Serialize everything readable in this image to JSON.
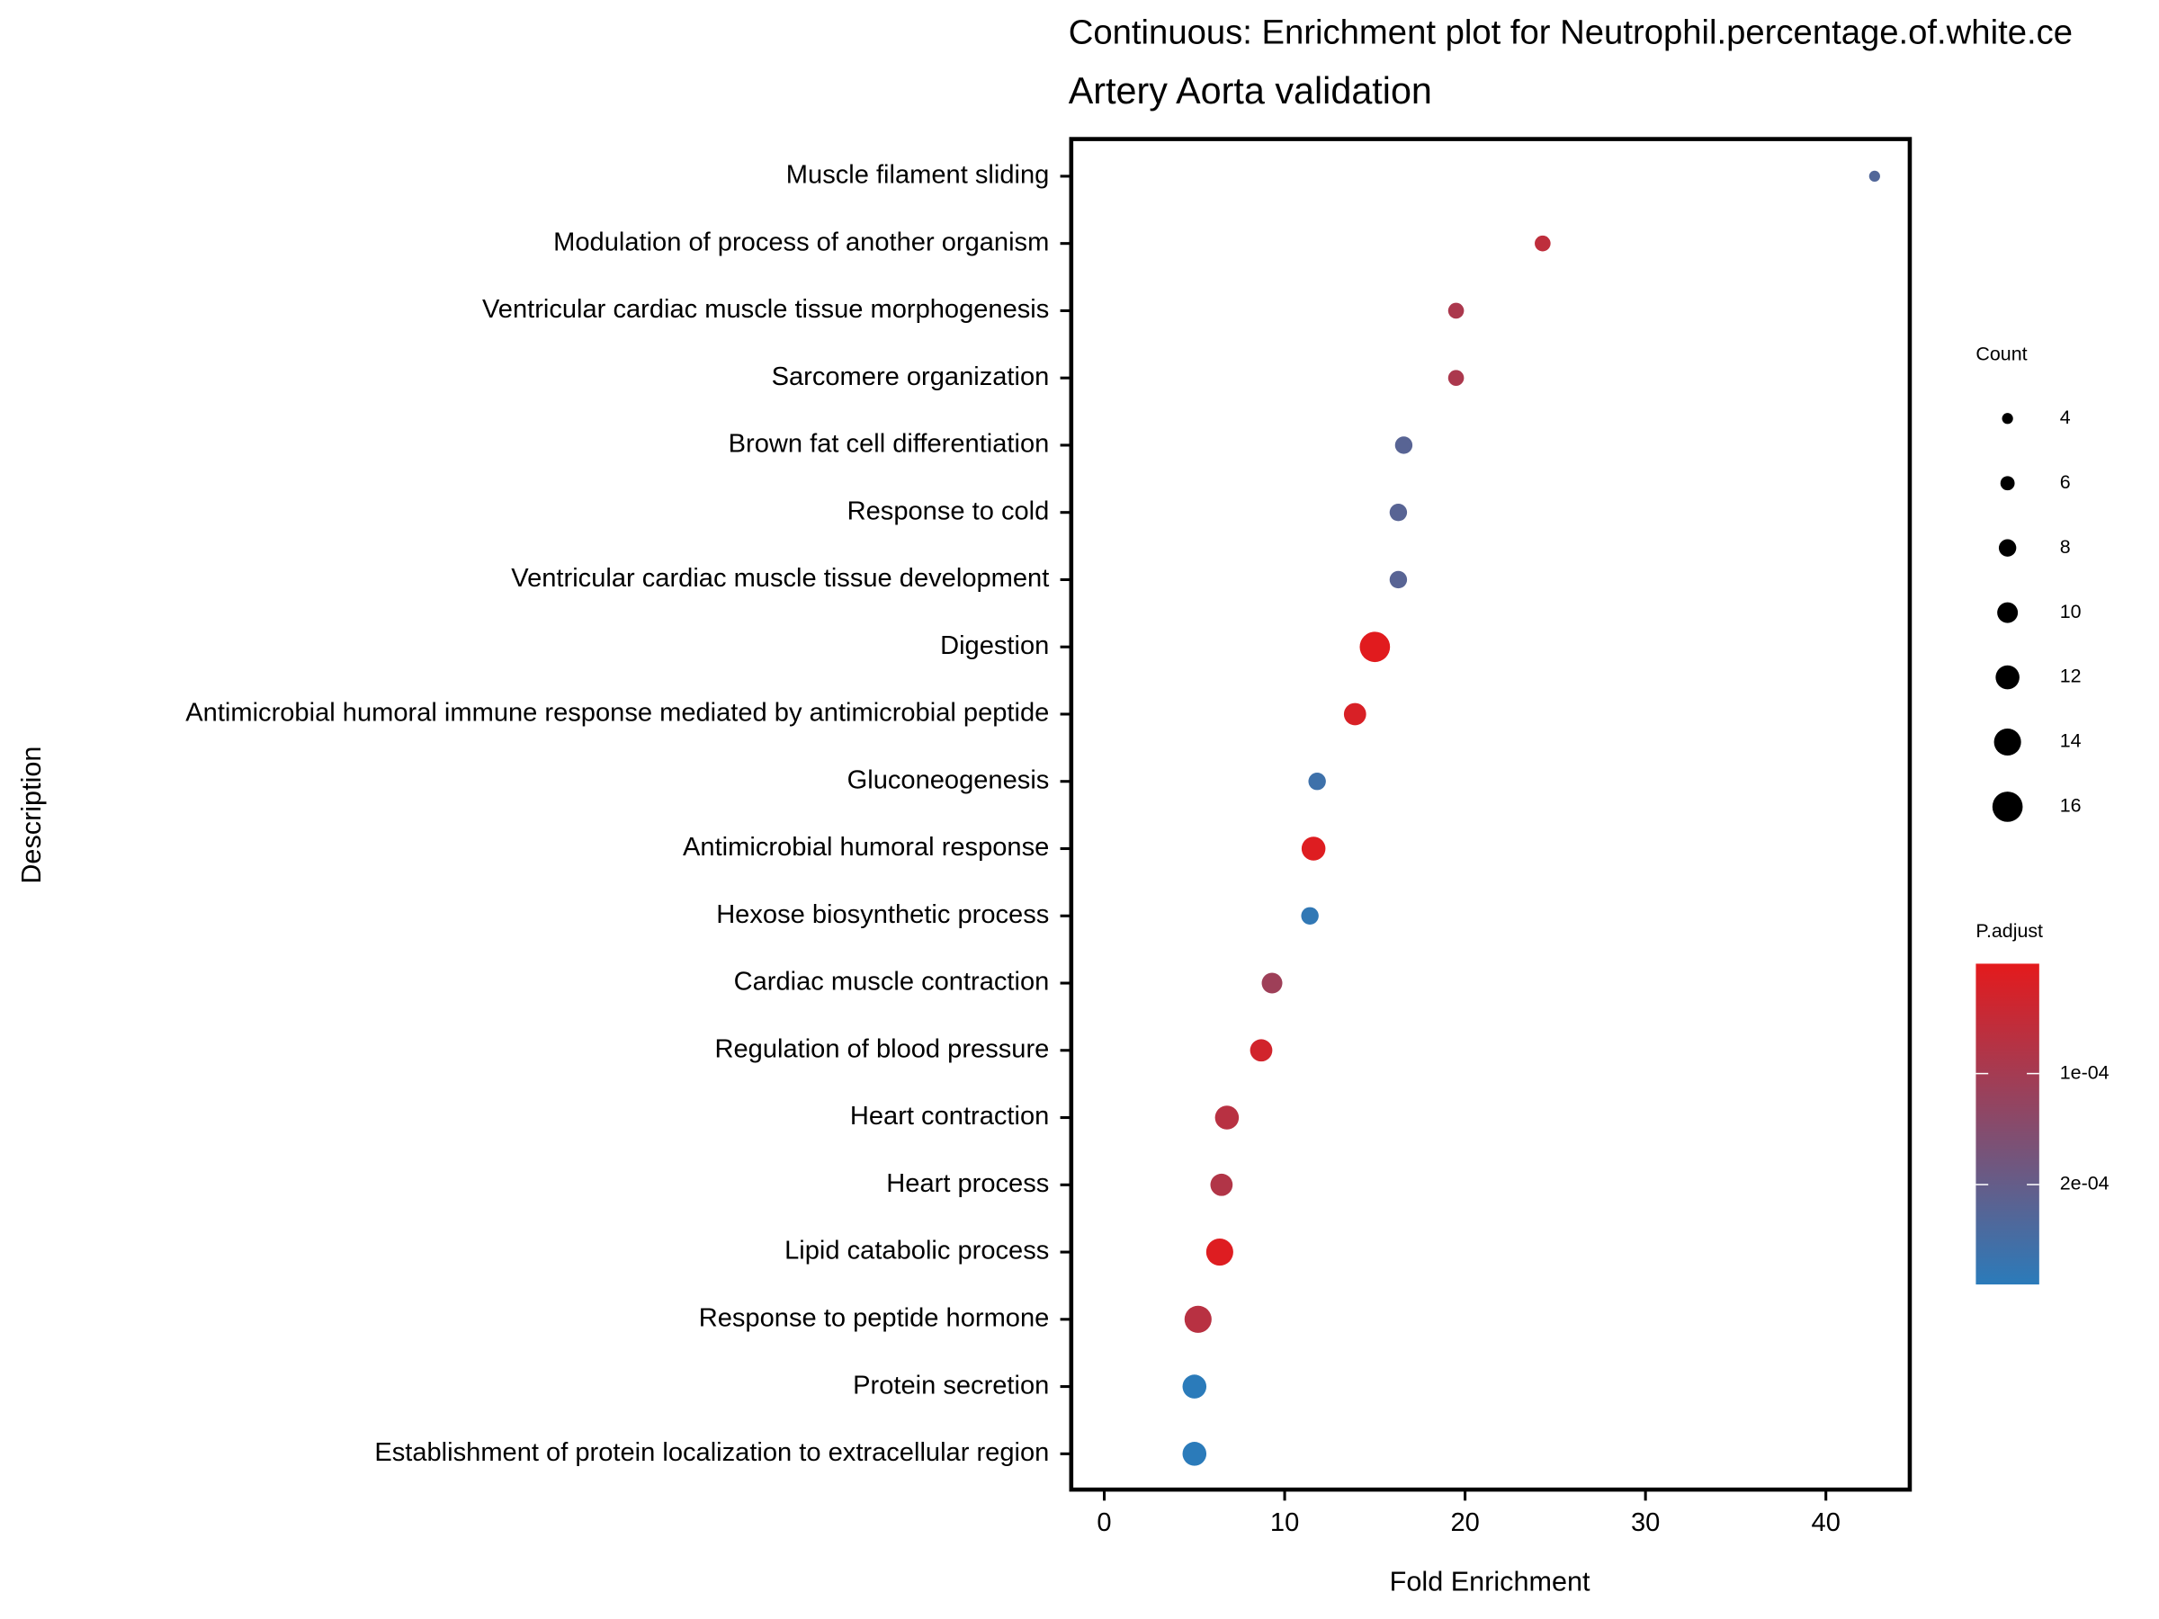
{
  "chart_data": {
    "type": "dot",
    "title": "Continuous: Enrichment plot for Neutrophil.percentage.of.white.ce",
    "subtitle": "Artery Aorta validation",
    "x_label": "Fold Enrichment",
    "y_label": "Description",
    "categories": [
      "Muscle filament sliding",
      "Modulation of process of another organism",
      "Ventricular cardiac muscle tissue morphogenesis",
      "Sarcomere organization",
      "Brown fat cell differentiation",
      "Response to cold",
      "Ventricular cardiac muscle tissue development",
      "Digestion",
      "Antimicrobial humoral immune response mediated by antimicrobial peptide",
      "Gluconeogenesis",
      "Antimicrobial humoral response",
      "Hexose biosynthetic process",
      "Cardiac muscle contraction",
      "Regulation of blood pressure",
      "Heart contraction",
      "Heart process",
      "Lipid catabolic process",
      "Response to peptide hormone",
      "Protein secretion",
      "Establishment of protein localization to extracellular region"
    ],
    "values": [
      42.7,
      24.3,
      19.5,
      19.5,
      16.6,
      16.3,
      16.3,
      15.0,
      13.9,
      11.8,
      11.6,
      11.4,
      9.3,
      8.7,
      6.8,
      6.5,
      6.4,
      5.2,
      5.0,
      5.0
    ],
    "sizes": [
      4,
      7,
      7,
      7,
      8,
      8,
      8,
      16,
      11,
      8,
      12,
      8,
      10,
      11,
      12,
      11,
      14,
      14,
      12,
      12
    ],
    "p_adjust": [
      0.00023,
      6e-05,
      9e-05,
      9e-05,
      0.00022,
      0.00022,
      0.00022,
      5e-06,
      2e-05,
      0.00026,
      1e-05,
      0.00028,
      0.00011,
      3e-05,
      7e-05,
      8e-05,
      1e-05,
      7e-05,
      0.00029,
      0.00029
    ],
    "xlim": [
      -1.83,
      44.65
    ],
    "xticks": [
      0,
      10,
      20,
      30,
      40
    ],
    "size_legend_title": "Count",
    "size_ticks": [
      4,
      6,
      8,
      10,
      12,
      14,
      16
    ],
    "color_legend_title": "P.adjust",
    "color_lim": [
      1e-06,
      0.00029
    ],
    "color_ticks": [
      {
        "value": 0.0001,
        "label": "1e-04"
      },
      {
        "value": 0.0002,
        "label": "2e-04"
      }
    ],
    "color_low": "#e41a1c",
    "color_high": "#2b7bba"
  }
}
